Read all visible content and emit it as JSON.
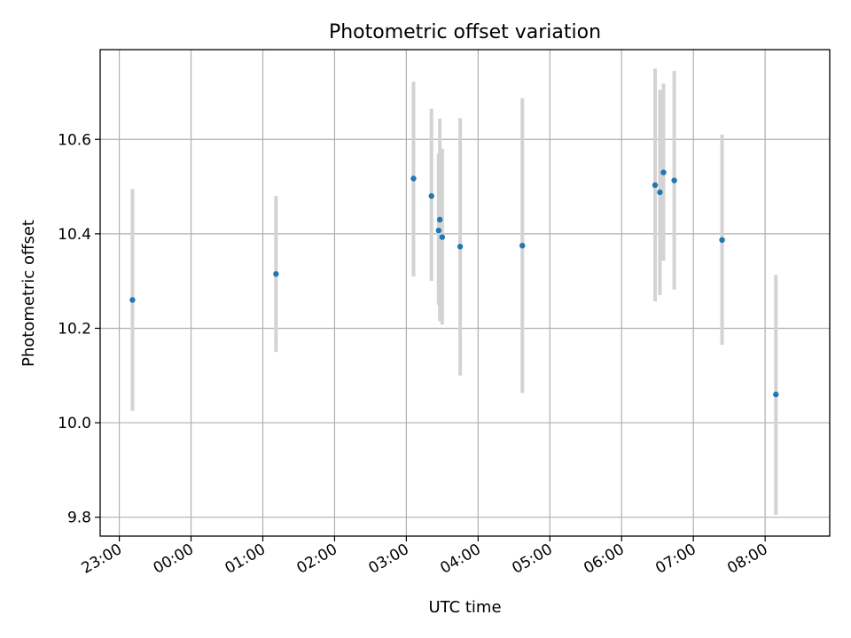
{
  "chart_data": {
    "type": "scatter",
    "title": "Photometric offset variation",
    "xlabel": "UTC time",
    "ylabel": "Photometric offset",
    "xlim": [
      "22:44",
      "08:54"
    ],
    "ylim": [
      9.76,
      10.79
    ],
    "x_ticks": [
      "23:00",
      "00:00",
      "01:00",
      "02:00",
      "03:00",
      "04:00",
      "05:00",
      "06:00",
      "07:00",
      "08:00"
    ],
    "y_ticks": [
      9.8,
      10.0,
      10.2,
      10.4,
      10.6
    ],
    "y_tick_labels": [
      "9.8",
      "10.0",
      "10.2",
      "10.4",
      "10.6"
    ],
    "grid": true,
    "marker_color": "#1f77b4",
    "errorbar_color": "#d3d3d3",
    "points": [
      {
        "time": "23:11",
        "y": 10.26,
        "ylow": 10.025,
        "yhigh": 10.495
      },
      {
        "time": "01:11",
        "y": 10.315,
        "ylow": 10.15,
        "yhigh": 10.48
      },
      {
        "time": "03:06",
        "y": 10.517,
        "ylow": 10.31,
        "yhigh": 10.722
      },
      {
        "time": "03:21",
        "y": 10.48,
        "ylow": 10.3,
        "yhigh": 10.665
      },
      {
        "time": "03:27",
        "y": 10.407,
        "ylow": 10.25,
        "yhigh": 10.57
      },
      {
        "time": "03:28",
        "y": 10.43,
        "ylow": 10.215,
        "yhigh": 10.644
      },
      {
        "time": "03:30",
        "y": 10.393,
        "ylow": 10.208,
        "yhigh": 10.58
      },
      {
        "time": "03:45",
        "y": 10.373,
        "ylow": 10.1,
        "yhigh": 10.645
      },
      {
        "time": "04:37",
        "y": 10.375,
        "ylow": 10.063,
        "yhigh": 10.687
      },
      {
        "time": "06:28",
        "y": 10.503,
        "ylow": 10.257,
        "yhigh": 10.75
      },
      {
        "time": "06:32",
        "y": 10.488,
        "ylow": 10.27,
        "yhigh": 10.705
      },
      {
        "time": "06:35",
        "y": 10.53,
        "ylow": 10.343,
        "yhigh": 10.718
      },
      {
        "time": "06:44",
        "y": 10.513,
        "ylow": 10.282,
        "yhigh": 10.745
      },
      {
        "time": "07:24",
        "y": 10.387,
        "ylow": 10.165,
        "yhigh": 10.61
      },
      {
        "time": "08:09",
        "y": 10.06,
        "ylow": 9.805,
        "yhigh": 10.313
      }
    ]
  }
}
